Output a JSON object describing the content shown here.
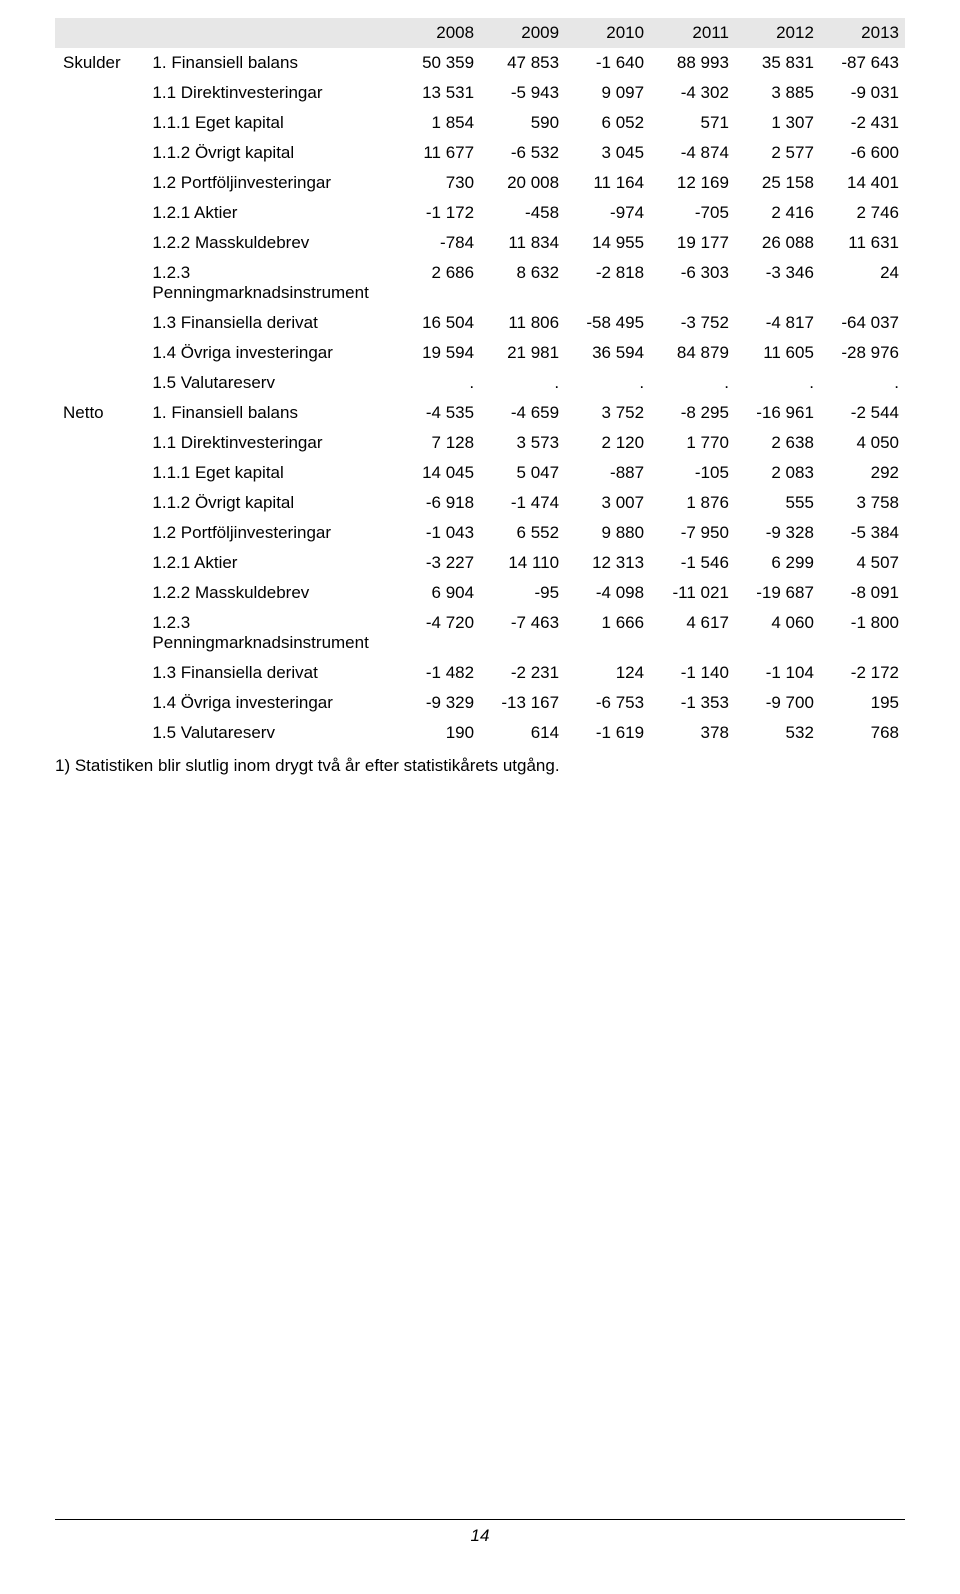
{
  "years": [
    "2008",
    "2009",
    "2010",
    "2011",
    "2012",
    "2013"
  ],
  "sections": [
    {
      "category": "Skulder",
      "rows": [
        {
          "label": "1. Finansiell balans",
          "v": [
            "50 359",
            "47 853",
            "-1 640",
            "88 993",
            "35 831",
            "-87 643"
          ]
        },
        {
          "label": "1.1 Direktinvesteringar",
          "v": [
            "13 531",
            "-5 943",
            "9 097",
            "-4 302",
            "3 885",
            "-9 031"
          ]
        },
        {
          "label": "1.1.1 Eget kapital",
          "v": [
            "1 854",
            "590",
            "6 052",
            "571",
            "1 307",
            "-2 431"
          ]
        },
        {
          "label": "1.1.2 Övrigt kapital",
          "v": [
            "11 677",
            "-6 532",
            "3 045",
            "-4 874",
            "2 577",
            "-6 600"
          ]
        },
        {
          "label": "1.2 Portföljinvesteringar",
          "v": [
            "730",
            "20 008",
            "11 164",
            "12 169",
            "25 158",
            "14 401"
          ]
        },
        {
          "label": "1.2.1 Aktier",
          "v": [
            "-1 172",
            "-458",
            "-974",
            "-705",
            "2 416",
            "2 746"
          ]
        },
        {
          "label": "1.2.2 Masskuldebrev",
          "v": [
            "-784",
            "11 834",
            "14 955",
            "19 177",
            "26 088",
            "11 631"
          ]
        },
        {
          "label": "1.2.3 Penningmarknadsinstrument",
          "v": [
            "2 686",
            "8 632",
            "-2 818",
            "-6 303",
            "-3 346",
            "24"
          ]
        },
        {
          "label": "1.3 Finansiella derivat",
          "v": [
            "16 504",
            "11 806",
            "-58 495",
            "-3 752",
            "-4 817",
            "-64 037"
          ]
        },
        {
          "label": "1.4 Övriga investeringar",
          "v": [
            "19 594",
            "21 981",
            "36 594",
            "84 879",
            "11 605",
            "-28 976"
          ]
        },
        {
          "label": "1.5 Valutareserv",
          "v": [
            ".",
            ".",
            ".",
            ".",
            ".",
            "."
          ]
        }
      ]
    },
    {
      "category": "Netto",
      "rows": [
        {
          "label": "1. Finansiell balans",
          "v": [
            "-4 535",
            "-4 659",
            "3 752",
            "-8 295",
            "-16 961",
            "-2 544"
          ]
        },
        {
          "label": "1.1 Direktinvesteringar",
          "v": [
            "7 128",
            "3 573",
            "2 120",
            "1 770",
            "2 638",
            "4 050"
          ]
        },
        {
          "label": "1.1.1 Eget kapital",
          "v": [
            "14 045",
            "5 047",
            "-887",
            "-105",
            "2 083",
            "292"
          ]
        },
        {
          "label": "1.1.2 Övrigt kapital",
          "v": [
            "-6 918",
            "-1 474",
            "3 007",
            "1 876",
            "555",
            "3 758"
          ]
        },
        {
          "label": "1.2 Portföljinvesteringar",
          "v": [
            "-1 043",
            "6 552",
            "9 880",
            "-7 950",
            "-9 328",
            "-5 384"
          ]
        },
        {
          "label": "1.2.1 Aktier",
          "v": [
            "-3 227",
            "14 110",
            "12 313",
            "-1 546",
            "6 299",
            "4 507"
          ]
        },
        {
          "label": "1.2.2 Masskuldebrev",
          "v": [
            "6 904",
            "-95",
            "-4 098",
            "-11 021",
            "-19 687",
            "-8 091"
          ]
        },
        {
          "label": "1.2.3 Penningmarknadsinstrument",
          "v": [
            "-4 720",
            "-7 463",
            "1 666",
            "4 617",
            "4 060",
            "-1 800"
          ]
        },
        {
          "label": "1.3 Finansiella derivat",
          "v": [
            "-1 482",
            "-2 231",
            "124",
            "-1 140",
            "-1 104",
            "-2 172"
          ]
        },
        {
          "label": "1.4 Övriga investeringar",
          "v": [
            "-9 329",
            "-13 167",
            "-6 753",
            "-1 353",
            "-9 700",
            "195"
          ]
        },
        {
          "label": "1.5 Valutareserv",
          "v": [
            "190",
            "614",
            "-1 619",
            "378",
            "532",
            "768"
          ]
        }
      ]
    }
  ],
  "footnote": "1) Statistiken blir slutlig inom drygt två år efter statistikårets utgång.",
  "page_number": "14",
  "colors": {
    "header_bg": "#e7e7e7",
    "text": "#000000",
    "footer_rule": "#000000",
    "background": "#ffffff"
  },
  "font": {
    "family": "Arial",
    "size_pt": 13
  }
}
